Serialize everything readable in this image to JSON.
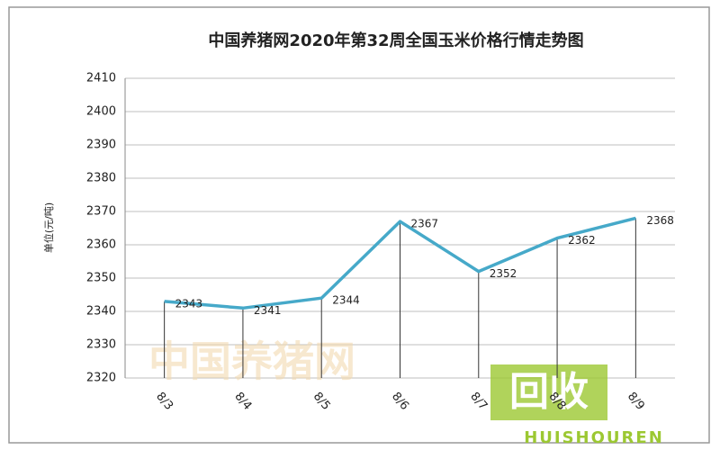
{
  "chart_data": {
    "type": "line",
    "title": "中国养猪网2020年第32周全国玉米价格行情走势图",
    "ylabel": "单位(元/吨)",
    "categories": [
      "8/3",
      "8/4",
      "8/5",
      "8/6",
      "8/7",
      "8/8",
      "8/9"
    ],
    "values": [
      2343,
      2341,
      2344,
      2367,
      2352,
      2362,
      2368
    ],
    "color": "#46a9c9",
    "ylim": [
      2320,
      2410
    ],
    "yticks": [
      2320,
      2330,
      2340,
      2350,
      2360,
      2370,
      2380,
      2390,
      2400,
      2410
    ],
    "grid": true,
    "watermarks": [
      "中国养猪网",
      "回收",
      "HUISHOUREN"
    ]
  }
}
